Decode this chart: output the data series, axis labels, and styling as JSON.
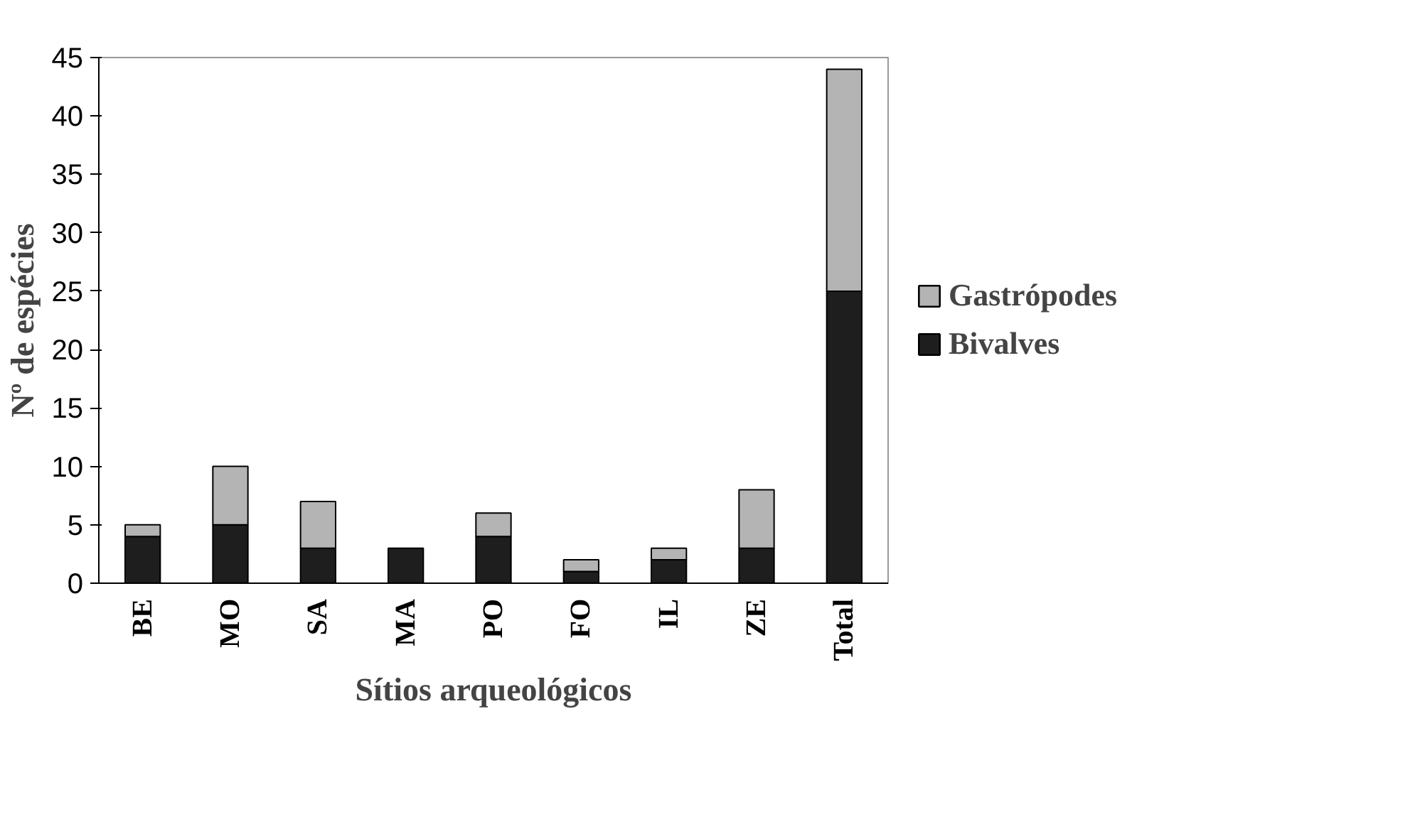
{
  "chart_data": {
    "type": "bar",
    "stacked": true,
    "xlabel": "Sítios arqueológicos",
    "ylabel": "Nº de espécies",
    "categories": [
      "BE",
      "MO",
      "SA",
      "MA",
      "PO",
      "FO",
      "IL",
      "ZE",
      "Total"
    ],
    "series": [
      {
        "name": "Bivalves",
        "color": "#1e1e1e",
        "values": [
          4,
          5,
          3,
          3,
          4,
          1,
          2,
          3,
          25
        ]
      },
      {
        "name": "Gastrópodes",
        "color": "#b4b4b4",
        "values": [
          1,
          5,
          4,
          0,
          2,
          1,
          1,
          5,
          19
        ]
      }
    ],
    "ylim": [
      0,
      45
    ],
    "yticks": [
      0,
      5,
      10,
      15,
      20,
      25,
      30,
      35,
      40,
      45
    ],
    "grid": false,
    "legend": "right"
  }
}
